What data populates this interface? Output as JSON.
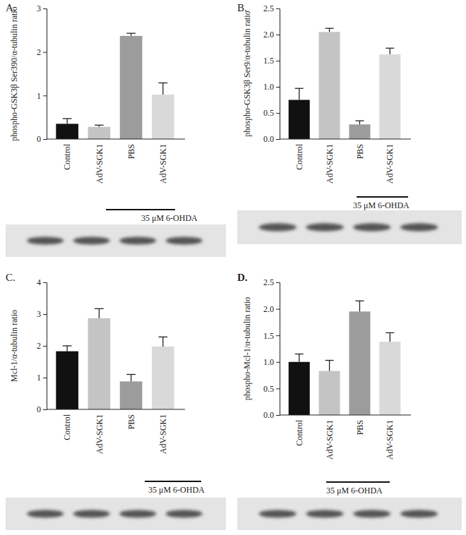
{
  "chart_data": [
    {
      "type": "bar",
      "title": "A.",
      "ylabel": "phospho-GSK3β Ser390/α-tubulin ratio",
      "categories": [
        "Control",
        "AdV-SGK1",
        "PBS",
        "AdV-SGK1"
      ],
      "values": [
        0.35,
        0.28,
        2.37,
        1.02
      ],
      "errors": [
        0.12,
        0.04,
        0.06,
        0.27
      ],
      "colors": [
        "#111111",
        "#c4c4c4",
        "#9c9c9c",
        "#d9d9d9"
      ],
      "ylim": [
        0,
        3
      ],
      "yticks": [
        0,
        1,
        2,
        3
      ],
      "annotation": "35 μM 6-OHDA"
    },
    {
      "type": "bar",
      "title": "B.",
      "ylabel": "phospho-GSK3β Ser9/α-tubulin ratio",
      "categories": [
        "Control",
        "AdV-SGK1",
        "PBS",
        "AdV-SGK1"
      ],
      "values": [
        0.75,
        2.05,
        0.28,
        1.62
      ],
      "errors": [
        0.22,
        0.07,
        0.07,
        0.12
      ],
      "colors": [
        "#111111",
        "#c4c4c4",
        "#9c9c9c",
        "#d9d9d9"
      ],
      "ylim": [
        0,
        2.5
      ],
      "yticks": [
        {
          "value": 0,
          "label": "0.0"
        },
        {
          "value": 0.5,
          "label": "0.5"
        },
        {
          "value": 1,
          "label": "1.0"
        },
        {
          "value": 1.5,
          "label": "1.5"
        },
        {
          "value": 2,
          "label": "2.0"
        },
        {
          "value": 2.5,
          "label": "2.5"
        }
      ],
      "annotation": "35 μM 6-OHDA"
    },
    {
      "type": "bar",
      "title": "C.",
      "ylabel": "Mcl-1/α-tubulin ratio",
      "categories": [
        "Control",
        "AdV-SGK1",
        "PBS",
        "AdV-SGK1"
      ],
      "values": [
        1.83,
        2.87,
        0.88,
        1.98
      ],
      "errors": [
        0.17,
        0.3,
        0.22,
        0.3
      ],
      "colors": [
        "#111111",
        "#c4c4c4",
        "#9c9c9c",
        "#d9d9d9"
      ],
      "ylim": [
        0,
        4
      ],
      "yticks": [
        0,
        1,
        2,
        3,
        4
      ],
      "annotation": "35 μM 6-OHDA"
    },
    {
      "type": "bar",
      "title": "D.",
      "ylabel": "phospho-Mcl-1/α-tubulin ratio",
      "categories": [
        "Control",
        "AdV-SGK1",
        "PBS",
        "AdV-SGK1"
      ],
      "values": [
        1.0,
        0.83,
        1.95,
        1.38
      ],
      "errors": [
        0.15,
        0.2,
        0.2,
        0.17
      ],
      "colors": [
        "#111111",
        "#c4c4c4",
        "#9c9c9c",
        "#d9d9d9"
      ],
      "ylim": [
        0,
        2.5
      ],
      "yticks": [
        {
          "value": 0,
          "label": "0.0"
        },
        {
          "value": 0.5,
          "label": "0.5"
        },
        {
          "value": 1,
          "label": "1.0"
        },
        {
          "value": 1.5,
          "label": "1.5"
        },
        {
          "value": 2,
          "label": "2.0"
        },
        {
          "value": 2.5,
          "label": "2.5"
        }
      ],
      "annotation": "35 μM 6-OHDA"
    }
  ]
}
